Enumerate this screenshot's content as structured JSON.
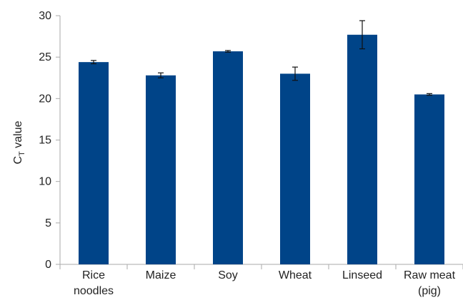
{
  "chart_data": {
    "type": "bar",
    "title": "",
    "xlabel": "",
    "ylabel": "C",
    "ylabel_subscript": "T",
    "ylabel_suffix": " value",
    "categories": [
      [
        "Rice",
        "noodles"
      ],
      [
        "Maize"
      ],
      [
        "Soy"
      ],
      [
        "Wheat"
      ],
      [
        "Linseed"
      ],
      [
        "Raw meat",
        "(pig)"
      ]
    ],
    "values": [
      24.4,
      22.8,
      25.7,
      23.0,
      27.7,
      20.5
    ],
    "errors": [
      0.2,
      0.3,
      0.1,
      0.8,
      1.7,
      0.1
    ],
    "ylim": [
      0,
      30
    ],
    "yticks": [
      0,
      5,
      10,
      15,
      20,
      25,
      30
    ],
    "grid": false,
    "legend": "none",
    "colors": {
      "bar": "#004488",
      "axis": "#aaaaaa",
      "error": "#111111"
    }
  }
}
